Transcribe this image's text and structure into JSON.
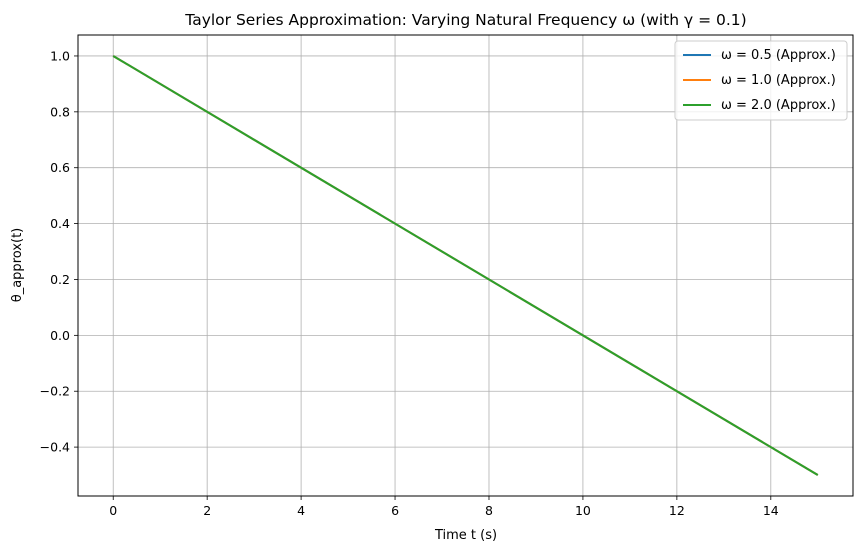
{
  "chart_data": {
    "type": "line",
    "title": "Taylor Series Approximation: Varying Natural Frequency ω (with γ = 0.1)",
    "xlabel": "Time t (s)",
    "ylabel": "θ_approx(t)",
    "xlim": [
      -0.75,
      15.75
    ],
    "ylim": [
      -0.575,
      1.075
    ],
    "xticks": [
      0,
      2,
      4,
      6,
      8,
      10,
      12,
      14
    ],
    "yticks": [
      -0.4,
      -0.2,
      0.0,
      0.2,
      0.4,
      0.6,
      0.8,
      1.0
    ],
    "xtick_labels": [
      "0",
      "2",
      "4",
      "6",
      "8",
      "10",
      "12",
      "14"
    ],
    "ytick_labels": [
      "−0.4",
      "−0.2",
      "0.0",
      "0.2",
      "0.4",
      "0.6",
      "0.8",
      "1.0"
    ],
    "grid": true,
    "legend_position": "top-right",
    "series": [
      {
        "name": "ω = 0.5 (Approx.)",
        "color": "#1f77b4",
        "x": [
          0,
          15
        ],
        "y": [
          1.0,
          -0.5
        ]
      },
      {
        "name": "ω = 1.0 (Approx.)",
        "color": "#ff7f0e",
        "x": [
          0,
          15
        ],
        "y": [
          1.0,
          -0.5
        ]
      },
      {
        "name": "ω = 2.0 (Approx.)",
        "color": "#2ca02c",
        "x": [
          0,
          15
        ],
        "y": [
          1.0,
          -0.5
        ]
      }
    ]
  }
}
